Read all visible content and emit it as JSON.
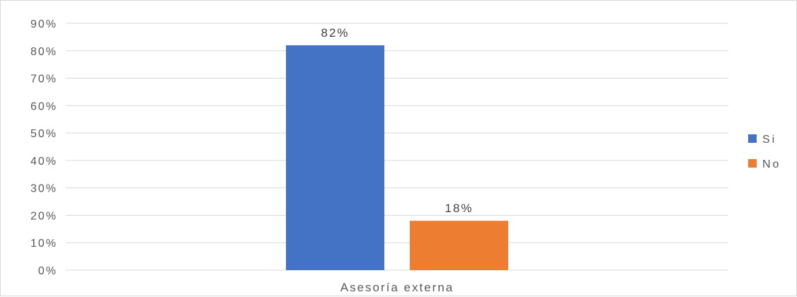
{
  "chart_data": {
    "type": "bar",
    "categories": [
      "Asesoría externa"
    ],
    "series": [
      {
        "name": "Si",
        "values": [
          0.82
        ],
        "label": "82%",
        "color": "#4472c4"
      },
      {
        "name": "No",
        "values": [
          0.18
        ],
        "label": "18%",
        "color": "#ed7d31"
      }
    ],
    "ylim": [
      0,
      0.9
    ],
    "y_ticks": [
      0,
      0.1,
      0.2,
      0.3,
      0.4,
      0.5,
      0.6,
      0.7,
      0.8,
      0.9
    ],
    "y_tick_labels": [
      "0%",
      "10%",
      "20%",
      "30%",
      "40%",
      "50%",
      "60%",
      "70%",
      "80%",
      "90%"
    ],
    "grid": true,
    "legend_position": "right",
    "gridline_color": "#d9d9d9"
  }
}
